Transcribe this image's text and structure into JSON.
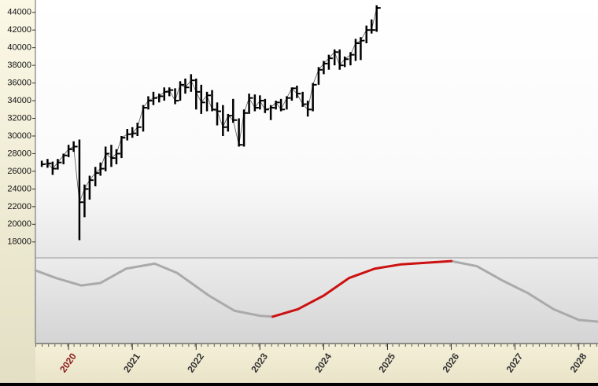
{
  "chart_data": [
    {
      "type": "ohlc",
      "x": [
        2019.58,
        2019.67,
        2019.75,
        2019.83,
        2019.92,
        2020.0,
        2020.08,
        2020.17,
        2020.25,
        2020.33,
        2020.42,
        2020.5,
        2020.58,
        2020.67,
        2020.75,
        2020.83,
        2020.92,
        2021.0,
        2021.08,
        2021.17,
        2021.25,
        2021.33,
        2021.42,
        2021.5,
        2021.58,
        2021.67,
        2021.75,
        2021.83,
        2021.92,
        2022.0,
        2022.08,
        2022.17,
        2022.25,
        2022.33,
        2022.42,
        2022.5,
        2022.58,
        2022.67,
        2022.75,
        2022.83,
        2022.92,
        2023.0,
        2023.08,
        2023.17,
        2023.25,
        2023.33,
        2023.42,
        2023.5,
        2023.58,
        2023.67,
        2023.75,
        2023.83,
        2023.92,
        2024.0,
        2024.08,
        2024.17,
        2024.25,
        2024.33,
        2024.42,
        2024.5,
        2024.58,
        2024.67,
        2024.75,
        2024.83
      ],
      "high": [
        27200,
        27400,
        27100,
        27400,
        28000,
        29000,
        29400,
        29600,
        24500,
        25500,
        26500,
        27000,
        28800,
        29000,
        28500,
        30000,
        30800,
        31000,
        31500,
        33500,
        34500,
        35000,
        34800,
        35500,
        35500,
        35400,
        36200,
        36500,
        37000,
        36500,
        35800,
        35000,
        35200,
        33800,
        33500,
        32500,
        34200,
        32000,
        33000,
        34800,
        34700,
        34600,
        34200,
        33500,
        34000,
        34200,
        34500,
        35500,
        35700,
        35000,
        34000,
        36000,
        37800,
        38500,
        39200,
        39800,
        39800,
        39000,
        39500,
        41000,
        41200,
        42500,
        43200,
        44800
      ],
      "low": [
        26500,
        26400,
        25600,
        26200,
        26800,
        27600,
        28200,
        18200,
        20800,
        22800,
        24300,
        25500,
        26000,
        26500,
        26800,
        27500,
        29500,
        29800,
        30000,
        30500,
        33000,
        33500,
        33800,
        34000,
        34500,
        33600,
        34000,
        34800,
        35000,
        33000,
        32500,
        32800,
        32800,
        31200,
        30000,
        30500,
        31500,
        28800,
        28800,
        32500,
        32800,
        33000,
        32600,
        31800,
        33000,
        32800,
        33000,
        34000,
        34300,
        33300,
        32200,
        32800,
        35800,
        37000,
        37500,
        38000,
        37500,
        37800,
        38000,
        38500,
        38600,
        40500,
        41600,
        41800
      ],
      "close": [
        26800,
        26900,
        26300,
        27000,
        27800,
        28500,
        28800,
        22500,
        24000,
        25000,
        25800,
        26300,
        28000,
        27500,
        28000,
        29800,
        30200,
        30300,
        31000,
        33200,
        34000,
        34300,
        34500,
        35000,
        35200,
        34000,
        35800,
        35500,
        36300,
        35000,
        33800,
        34600,
        33000,
        32800,
        31000,
        32300,
        31800,
        29000,
        32600,
        34300,
        33200,
        34000,
        33000,
        33200,
        33800,
        33000,
        34300,
        35400,
        34800,
        33600,
        33000,
        35800,
        37500,
        38200,
        38800,
        39500,
        38000,
        38700,
        39200,
        40500,
        40800,
        42000,
        42000,
        44500
      ],
      "color": "#000000",
      "xlim": [
        2019.48,
        2028.3
      ],
      "ylim": [
        16200,
        45400
      ],
      "yticks": [
        18000,
        20000,
        22000,
        24000,
        26000,
        28000,
        30000,
        32000,
        34000,
        36000,
        38000,
        40000,
        42000,
        44000
      ]
    },
    {
      "type": "line",
      "x": [
        2019.48,
        2019.8,
        2020.2,
        2020.5,
        2020.9,
        2021.35,
        2021.7,
        2022.2,
        2022.6,
        2023.0,
        2023.2,
        2023.6,
        2024.0,
        2024.4,
        2024.8,
        2025.2,
        2025.6,
        2026.0,
        2026.4,
        2026.8,
        2027.2,
        2027.6,
        2028.0,
        2028.3
      ],
      "series": [
        {
          "color": "#aaaaaa",
          "values": [
            87,
            78,
            69,
            72,
            89,
            95,
            84,
            57,
            39,
            33,
            32,
            null,
            null,
            null,
            null,
            null,
            null,
            98,
            92,
            75,
            60,
            41,
            28,
            26
          ]
        },
        {
          "color": "#cc1111",
          "values": [
            null,
            null,
            null,
            null,
            null,
            null,
            null,
            null,
            null,
            null,
            32,
            41,
            57,
            78,
            89,
            94,
            96,
            98,
            null,
            null,
            null,
            null,
            null,
            null
          ]
        }
      ],
      "xlim": [
        2019.48,
        2028.3
      ],
      "ylim": [
        0,
        100
      ],
      "xticks": [
        2020,
        2021,
        2022,
        2023,
        2024,
        2025,
        2026,
        2027,
        2028
      ],
      "highlighted_xtick_index": 0,
      "highlight_color": "#8b1a1a"
    }
  ]
}
